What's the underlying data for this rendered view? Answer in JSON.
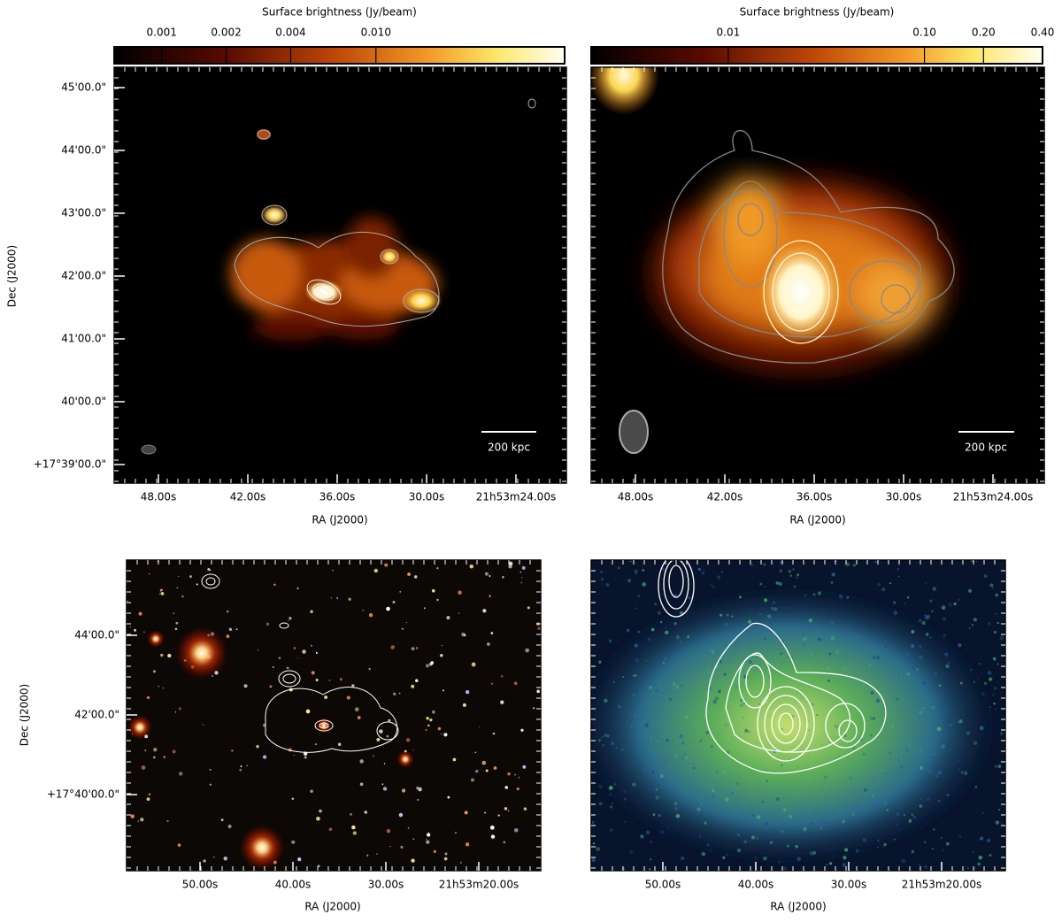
{
  "chart_data": [
    {
      "type": "image",
      "colorbar_label": "Surface brightness (Jy/beam)",
      "colorbar_log": true,
      "colorbar_lim": [
        0.0006,
        0.076
      ],
      "colorbar_ticks": [
        0.001,
        0.002,
        0.004,
        {
          "value": 0.01,
          "label": "0.010"
        }
      ],
      "xlabel": "RA (J2000)",
      "ylabel": "Dec (J2000)",
      "xtick_labels": [
        "48.00s",
        "42.00s",
        "36.00s",
        "30.00s",
        "21h53m24.00s"
      ],
      "ytick_labels": [
        "45'00.0\"",
        "44'00.0\"",
        "43'00.0\"",
        "42'00.0\"",
        "41'00.0\"",
        "40'00.0\"",
        "+17°39'00.0\""
      ],
      "scalebar_label": "200 kpc"
    },
    {
      "type": "image",
      "colorbar_label": "Surface brightness (Jy/beam)",
      "colorbar_log": true,
      "colorbar_lim": [
        0.002,
        0.4
      ],
      "colorbar_ticks": [
        0.01,
        {
          "value": 0.1,
          "label": "0.10"
        },
        {
          "value": 0.2,
          "label": "0.20"
        },
        {
          "value": 0.4,
          "label": "0.40"
        }
      ],
      "xlabel": "RA (J2000)",
      "xtick_labels": [
        "48.00s",
        "42.00s",
        "36.00s",
        "30.00s",
        "21h53m24.00s"
      ],
      "scalebar_label": "200 kpc"
    },
    {
      "type": "image",
      "xlabel": "RA (J2000)",
      "ylabel": "Dec (J2000)",
      "xtick_labels": [
        "50.00s",
        "40.00s",
        "30.00s",
        "21h53m20.00s"
      ],
      "ytick_labels": [
        "44'00.0\"",
        "42'00.0\"",
        "+17°40'00.0\""
      ]
    },
    {
      "type": "image",
      "xlabel": "RA (J2000)",
      "xtick_labels": [
        "50.00s",
        "40.00s",
        "30.00s",
        "21h53m20.00s"
      ]
    }
  ]
}
